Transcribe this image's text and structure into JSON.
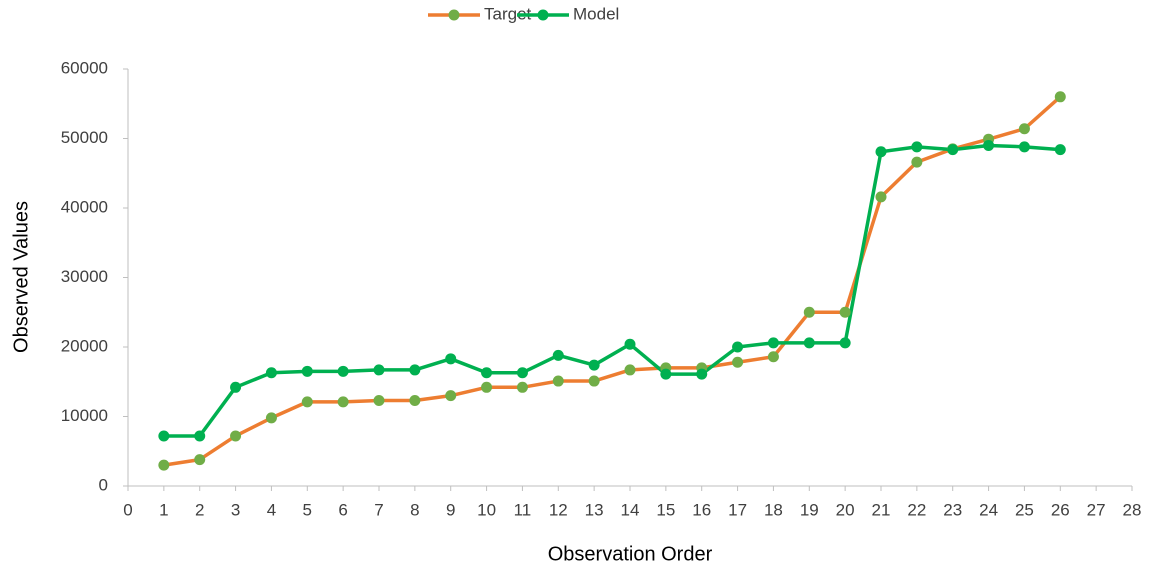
{
  "chart_data": {
    "type": "line",
    "x_label": "Observation Order",
    "y_label": "Observed Values",
    "x": [
      1,
      2,
      3,
      4,
      5,
      6,
      7,
      8,
      9,
      10,
      11,
      12,
      13,
      14,
      15,
      16,
      17,
      18,
      19,
      20,
      21,
      22,
      23,
      24,
      25,
      26
    ],
    "series": [
      {
        "name": "Target",
        "color": "#ed7d31",
        "marker_color": "#70ad47",
        "values": [
          3000,
          3800,
          7200,
          9800,
          12100,
          12100,
          12300,
          12300,
          13000,
          14200,
          14200,
          15100,
          15100,
          16700,
          17000,
          17000,
          17800,
          18600,
          25000,
          25000,
          41600,
          46600,
          48500,
          49900,
          51400,
          56000
        ]
      },
      {
        "name": "Model",
        "color": "#00b050",
        "marker_color": "#00b050",
        "values": [
          7200,
          7200,
          14200,
          16300,
          16500,
          16500,
          16700,
          16700,
          18300,
          16300,
          16300,
          18800,
          17400,
          20400,
          16100,
          16100,
          20000,
          20600,
          20600,
          20600,
          48100,
          48800,
          48400,
          49000,
          48800,
          48400
        ]
      }
    ],
    "xlim": [
      0,
      28
    ],
    "xticks": [
      0,
      1,
      2,
      3,
      4,
      5,
      6,
      7,
      8,
      9,
      10,
      11,
      12,
      13,
      14,
      15,
      16,
      17,
      18,
      19,
      20,
      21,
      22,
      23,
      24,
      25,
      26,
      27,
      28
    ],
    "ylim": [
      0,
      60000
    ],
    "yticks": [
      0,
      10000,
      20000,
      30000,
      40000,
      50000,
      60000
    ],
    "grid": false,
    "legend": "top"
  }
}
